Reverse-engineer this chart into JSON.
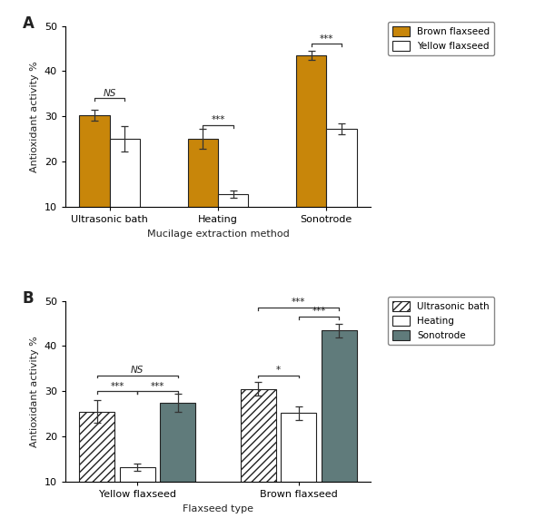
{
  "panel_A": {
    "groups": [
      "Ultrasonic bath",
      "Heating",
      "Sonotrode"
    ],
    "brown_values": [
      30.3,
      25.0,
      43.5
    ],
    "yellow_values": [
      25.0,
      12.8,
      27.2
    ],
    "brown_errors": [
      1.2,
      2.2,
      1.0
    ],
    "yellow_errors": [
      2.8,
      0.8,
      1.2
    ],
    "brown_color": "#C8860A",
    "yellow_color": "#FFFFFF",
    "ylabel": "Antioxidant activity %",
    "xlabel": "Mucilage extraction method",
    "ylim": [
      10,
      50
    ],
    "yticks": [
      10,
      20,
      30,
      40,
      50
    ],
    "legend": [
      "Brown flaxseed",
      "Yellow flaxseed"
    ]
  },
  "panel_B": {
    "groups": [
      "Yellow flaxseed",
      "Brown flaxseed"
    ],
    "ultrasonic_values": [
      25.5,
      30.5
    ],
    "heating_values": [
      13.2,
      25.2
    ],
    "sonotrode_values": [
      27.5,
      43.5
    ],
    "ultrasonic_errors": [
      2.5,
      1.5
    ],
    "heating_errors": [
      0.8,
      1.5
    ],
    "sonotrode_errors": [
      2.0,
      1.5
    ],
    "sonotrode_color": "#607B7B",
    "ylabel": "Antioxidant activity %",
    "xlabel": "Flaxseed type",
    "ylim": [
      10,
      50
    ],
    "yticks": [
      10,
      20,
      30,
      40,
      50
    ],
    "legend": [
      "Ultrasonic bath",
      "Heating",
      "Sonotrode"
    ]
  },
  "background_color": "#FFFFFF",
  "edge_color": "#222222",
  "text_color": "#222222",
  "hatch_pattern": "////"
}
